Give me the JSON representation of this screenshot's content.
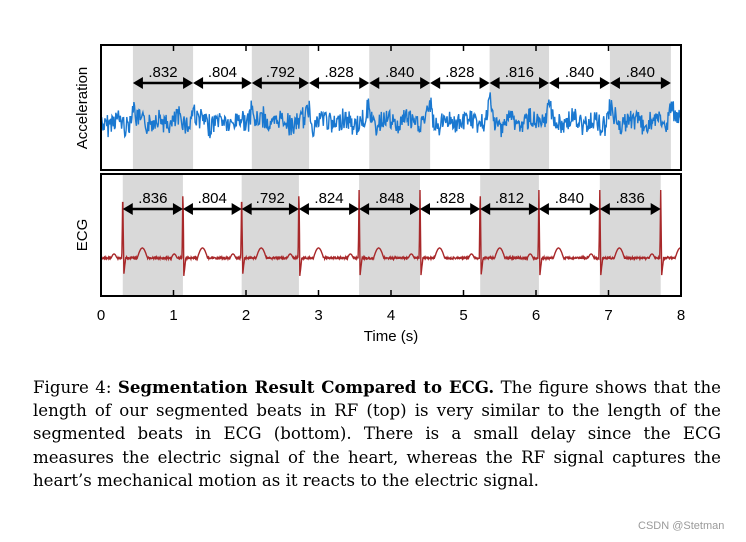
{
  "chart_data": {
    "type": "line",
    "xlabel": "Time (s)",
    "xlim": [
      0,
      8
    ],
    "x_ticks": [
      "0",
      "1",
      "2",
      "3",
      "4",
      "5",
      "6",
      "7",
      "8"
    ],
    "panels": [
      {
        "ylabel": "Acceleration",
        "line_color": "#1a78d0",
        "shade_color": "#d9d9d9",
        "boundaries_s": [
          0.44,
          1.27,
          2.08,
          2.87,
          3.7,
          4.54,
          5.36,
          6.18,
          7.02,
          7.86
        ],
        "beat_labels": [
          ".832",
          ".804",
          ".792",
          ".828",
          ".840",
          ".828",
          ".816",
          ".840",
          ".840"
        ]
      },
      {
        "ylabel": "ECG",
        "line_color": "#a8282a",
        "shade_color": "#d9d9d9",
        "boundaries_s": [
          0.3,
          1.13,
          1.94,
          2.73,
          3.56,
          4.4,
          5.23,
          6.04,
          6.88,
          7.72
        ],
        "beat_labels": [
          ".836",
          ".804",
          ".792",
          ".824",
          ".848",
          ".828",
          ".812",
          ".840",
          ".836"
        ]
      }
    ]
  },
  "caption": {
    "label": "Figure 4:",
    "title": "Segmentation Result Compared to ECG.",
    "body": "The figure shows that the length of our segmented beats in RF (top) is very similar to the length of the segmented beats in ECG (bottom). There is a small delay since the ECG measures the electric signal of the heart, whereas the RF signal captures the heart’s mechanical motion as it reacts to the electric signal."
  },
  "watermark": "CSDN @Stetman"
}
